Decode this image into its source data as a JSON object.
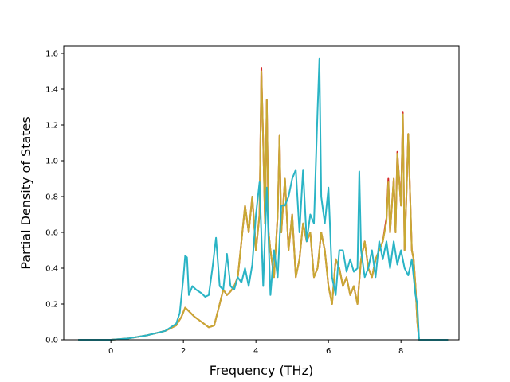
{
  "chart_data": {
    "type": "line",
    "title": "",
    "xlabel": "Frequency (THz)",
    "ylabel": "Partial Density of States",
    "xlim": [
      -1.3,
      9.6
    ],
    "ylim": [
      0.0,
      1.64
    ],
    "xticks": [
      0,
      2,
      4,
      6,
      8
    ],
    "xtick_labels": [
      "0",
      "2",
      "4",
      "6",
      "8"
    ],
    "yticks": [
      0.0,
      0.2,
      0.4,
      0.6,
      0.8,
      1.0,
      1.2,
      1.4,
      1.6
    ],
    "ytick_labels": [
      "0.0",
      "0.2",
      "0.4",
      "0.6",
      "0.8",
      "1.0",
      "1.2",
      "1.4",
      "1.6"
    ],
    "grid": false,
    "legend": "none",
    "series": [
      {
        "color": "#d62728",
        "x": [
          -0.9,
          0,
          0.5,
          1.0,
          1.5,
          1.8,
          1.95,
          2.05,
          2.15,
          2.3,
          2.5,
          2.7,
          2.85,
          3.0,
          3.1,
          3.2,
          3.3,
          3.4,
          3.5,
          3.6,
          3.7,
          3.8,
          3.9,
          4.0,
          4.1,
          4.15,
          4.2,
          4.25,
          4.3,
          4.35,
          4.4,
          4.5,
          4.6,
          4.65,
          4.7,
          4.8,
          4.9,
          5.0,
          5.1,
          5.2,
          5.3,
          5.4,
          5.5,
          5.6,
          5.7,
          5.8,
          5.9,
          6.0,
          6.1,
          6.2,
          6.3,
          6.4,
          6.5,
          6.6,
          6.7,
          6.8,
          6.9,
          7.0,
          7.1,
          7.2,
          7.3,
          7.4,
          7.5,
          7.6,
          7.65,
          7.7,
          7.8,
          7.85,
          7.9,
          8.0,
          8.05,
          8.1,
          8.15,
          8.2,
          8.3,
          8.35,
          8.4,
          8.45,
          8.5,
          9.3
        ],
        "y": [
          0.0,
          0.0,
          0.008,
          0.025,
          0.05,
          0.08,
          0.13,
          0.18,
          0.16,
          0.13,
          0.1,
          0.07,
          0.08,
          0.2,
          0.28,
          0.25,
          0.27,
          0.3,
          0.35,
          0.55,
          0.75,
          0.6,
          0.8,
          0.5,
          0.7,
          1.52,
          1.1,
          0.65,
          1.34,
          0.6,
          0.5,
          0.35,
          0.7,
          1.14,
          0.6,
          0.9,
          0.5,
          0.7,
          0.35,
          0.45,
          0.65,
          0.55,
          0.6,
          0.35,
          0.4,
          0.6,
          0.5,
          0.3,
          0.2,
          0.45,
          0.4,
          0.3,
          0.35,
          0.25,
          0.3,
          0.2,
          0.45,
          0.55,
          0.4,
          0.35,
          0.45,
          0.5,
          0.55,
          0.68,
          0.9,
          0.6,
          0.9,
          0.6,
          1.05,
          0.75,
          1.27,
          0.5,
          0.8,
          1.15,
          0.5,
          0.45,
          0.3,
          0.1,
          0.0,
          0.0
        ]
      },
      {
        "color": "#c8a934",
        "x": [
          -0.9,
          0,
          0.5,
          1.0,
          1.5,
          1.8,
          1.95,
          2.05,
          2.15,
          2.3,
          2.5,
          2.7,
          2.85,
          3.0,
          3.1,
          3.2,
          3.3,
          3.4,
          3.5,
          3.6,
          3.7,
          3.8,
          3.9,
          4.0,
          4.1,
          4.15,
          4.2,
          4.25,
          4.3,
          4.35,
          4.4,
          4.5,
          4.6,
          4.65,
          4.7,
          4.8,
          4.9,
          5.0,
          5.1,
          5.2,
          5.3,
          5.4,
          5.5,
          5.6,
          5.7,
          5.8,
          5.9,
          6.0,
          6.1,
          6.2,
          6.3,
          6.4,
          6.5,
          6.6,
          6.7,
          6.8,
          6.9,
          7.0,
          7.1,
          7.2,
          7.3,
          7.4,
          7.5,
          7.6,
          7.65,
          7.7,
          7.8,
          7.85,
          7.9,
          8.0,
          8.05,
          8.1,
          8.15,
          8.2,
          8.3,
          8.35,
          8.4,
          8.45,
          8.5,
          9.3
        ],
        "y": [
          0.0,
          0.0,
          0.008,
          0.025,
          0.05,
          0.08,
          0.13,
          0.18,
          0.16,
          0.13,
          0.1,
          0.07,
          0.08,
          0.2,
          0.28,
          0.25,
          0.27,
          0.3,
          0.35,
          0.55,
          0.75,
          0.6,
          0.8,
          0.5,
          0.7,
          1.5,
          1.1,
          0.65,
          1.34,
          0.6,
          0.5,
          0.35,
          0.7,
          1.14,
          0.6,
          0.9,
          0.5,
          0.7,
          0.35,
          0.45,
          0.65,
          0.55,
          0.6,
          0.35,
          0.4,
          0.6,
          0.5,
          0.3,
          0.2,
          0.45,
          0.4,
          0.3,
          0.35,
          0.25,
          0.3,
          0.2,
          0.45,
          0.55,
          0.4,
          0.35,
          0.45,
          0.5,
          0.55,
          0.66,
          0.88,
          0.6,
          0.9,
          0.6,
          1.04,
          0.75,
          1.26,
          0.5,
          0.8,
          1.15,
          0.5,
          0.45,
          0.3,
          0.1,
          0.0,
          0.0
        ]
      },
      {
        "color": "#2ab4c5",
        "x": [
          -0.9,
          0,
          0.5,
          1.0,
          1.5,
          1.8,
          1.9,
          1.95,
          2.0,
          2.05,
          2.1,
          2.15,
          2.25,
          2.35,
          2.5,
          2.6,
          2.7,
          2.8,
          2.9,
          3.0,
          3.1,
          3.2,
          3.3,
          3.4,
          3.5,
          3.6,
          3.7,
          3.8,
          3.9,
          4.0,
          4.1,
          4.2,
          4.3,
          4.4,
          4.5,
          4.6,
          4.7,
          4.8,
          4.9,
          5.0,
          5.1,
          5.2,
          5.3,
          5.4,
          5.5,
          5.6,
          5.7,
          5.75,
          5.8,
          5.9,
          6.0,
          6.1,
          6.2,
          6.3,
          6.4,
          6.5,
          6.6,
          6.7,
          6.8,
          6.85,
          6.9,
          7.0,
          7.1,
          7.2,
          7.3,
          7.4,
          7.5,
          7.6,
          7.7,
          7.8,
          7.9,
          8.0,
          8.1,
          8.2,
          8.3,
          8.4,
          8.45,
          8.5,
          9.3
        ],
        "y": [
          0.0,
          0.0,
          0.008,
          0.025,
          0.05,
          0.09,
          0.15,
          0.25,
          0.35,
          0.47,
          0.46,
          0.25,
          0.3,
          0.28,
          0.26,
          0.24,
          0.25,
          0.4,
          0.57,
          0.3,
          0.28,
          0.48,
          0.3,
          0.28,
          0.35,
          0.32,
          0.4,
          0.3,
          0.42,
          0.7,
          0.88,
          0.3,
          0.85,
          0.25,
          0.5,
          0.35,
          0.75,
          0.75,
          0.8,
          0.9,
          0.95,
          0.6,
          0.95,
          0.55,
          0.7,
          0.65,
          1.28,
          1.57,
          0.8,
          0.65,
          0.85,
          0.35,
          0.25,
          0.5,
          0.5,
          0.38,
          0.45,
          0.38,
          0.4,
          0.94,
          0.5,
          0.35,
          0.4,
          0.5,
          0.35,
          0.55,
          0.45,
          0.55,
          0.4,
          0.55,
          0.42,
          0.5,
          0.4,
          0.36,
          0.45,
          0.25,
          0.2,
          0.0,
          0.0
        ]
      }
    ]
  }
}
